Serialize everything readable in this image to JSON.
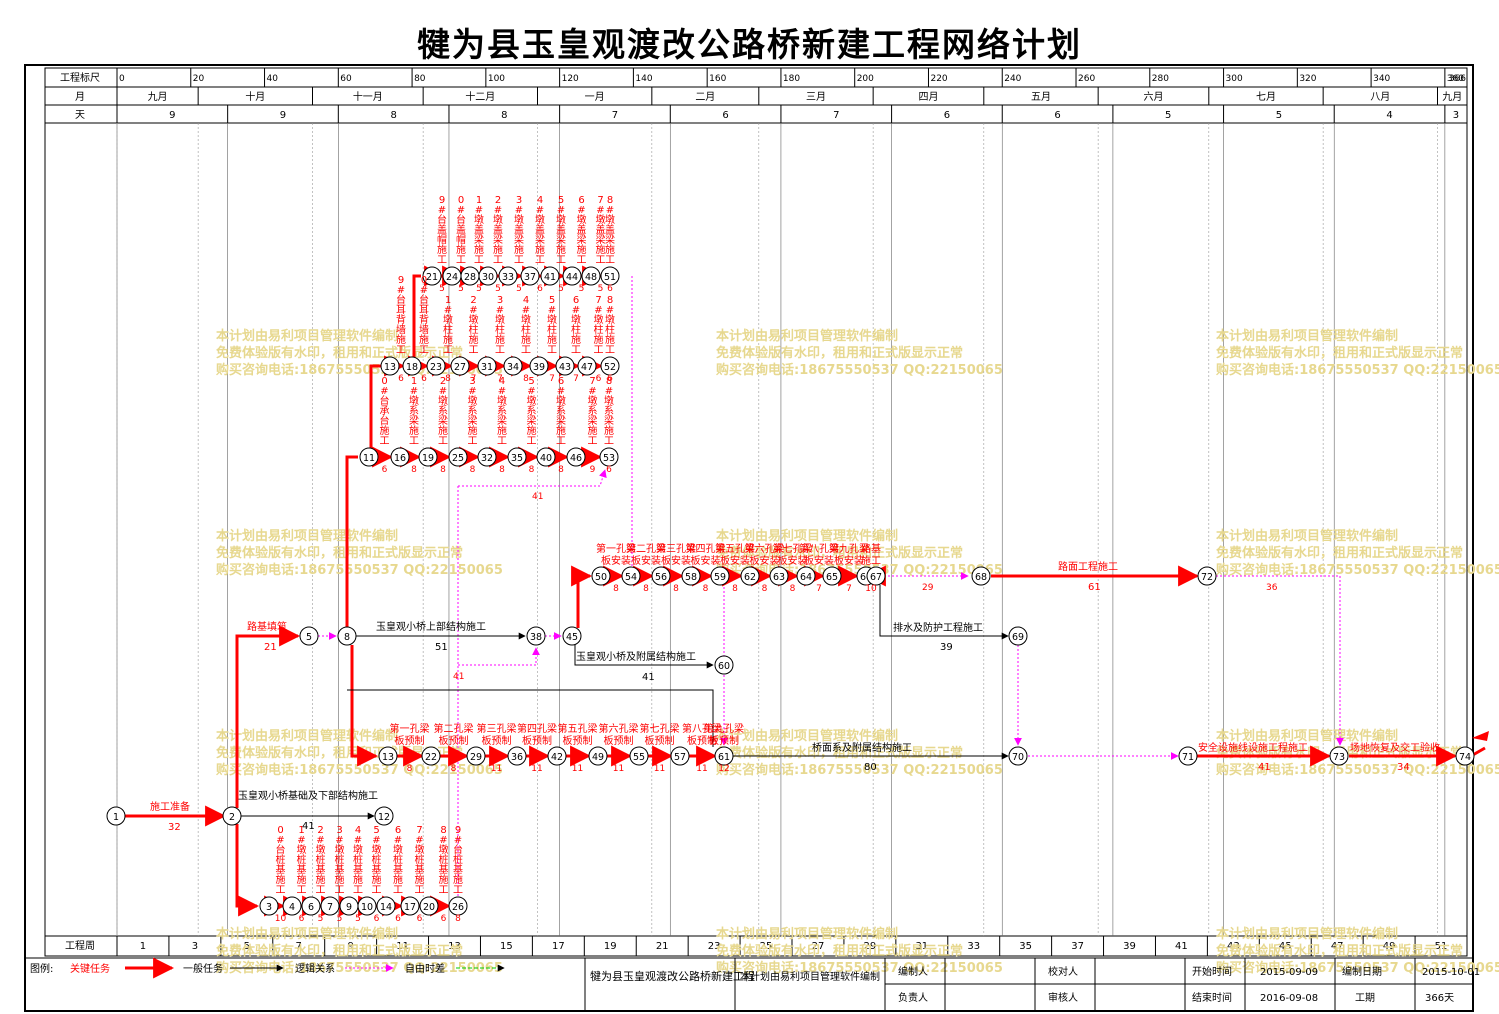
{
  "title": "犍为县玉皇观渡改公路桥新建工程网络计划",
  "scale": {
    "row_label": "工程标尺",
    "ticks": [
      "0",
      "20",
      "40",
      "60",
      "80",
      "100",
      "120",
      "140",
      "160",
      "180",
      "200",
      "220",
      "240",
      "260",
      "280",
      "300",
      "320",
      "340",
      "360",
      "366"
    ],
    "tick_values": [
      0,
      20,
      40,
      60,
      80,
      100,
      120,
      140,
      160,
      180,
      200,
      220,
      240,
      260,
      280,
      300,
      320,
      340,
      360,
      366
    ],
    "min": 0,
    "max": 366
  },
  "months": {
    "row_label": "月",
    "items": [
      {
        "label": "九月",
        "start": 0,
        "end": 22
      },
      {
        "label": "十月",
        "start": 22,
        "end": 53
      },
      {
        "label": "十一月",
        "start": 53,
        "end": 83
      },
      {
        "label": "十二月",
        "start": 83,
        "end": 114
      },
      {
        "label": "一月",
        "start": 114,
        "end": 145
      },
      {
        "label": "二月",
        "start": 145,
        "end": 174
      },
      {
        "label": "三月",
        "start": 174,
        "end": 205
      },
      {
        "label": "四月",
        "start": 205,
        "end": 235
      },
      {
        "label": "五月",
        "start": 235,
        "end": 266
      },
      {
        "label": "六月",
        "start": 266,
        "end": 296
      },
      {
        "label": "七月",
        "start": 296,
        "end": 327
      },
      {
        "label": "八月",
        "start": 327,
        "end": 358
      },
      {
        "label": "九月",
        "start": 358,
        "end": 366
      }
    ]
  },
  "days": {
    "row_label": "天",
    "items": [
      {
        "label": "9",
        "start": 0,
        "end": 30
      },
      {
        "label": "9",
        "start": 30,
        "end": 60
      },
      {
        "label": "8",
        "start": 60,
        "end": 90
      },
      {
        "label": "8",
        "start": 90,
        "end": 120
      },
      {
        "label": "7",
        "start": 120,
        "end": 150
      },
      {
        "label": "6",
        "start": 150,
        "end": 180
      },
      {
        "label": "7",
        "start": 180,
        "end": 210
      },
      {
        "label": "6",
        "start": 210,
        "end": 240
      },
      {
        "label": "6",
        "start": 240,
        "end": 270
      },
      {
        "label": "5",
        "start": 270,
        "end": 300
      },
      {
        "label": "5",
        "start": 300,
        "end": 330
      },
      {
        "label": "4",
        "start": 330,
        "end": 360
      },
      {
        "label": "3",
        "start": 360,
        "end": 366
      }
    ]
  },
  "weeks": {
    "row_label": "工程周",
    "labels": [
      "1",
      "3",
      "5",
      "7",
      "9",
      "11",
      "13",
      "15",
      "17",
      "19",
      "21",
      "23",
      "25",
      "27",
      "29",
      "31",
      "33",
      "35",
      "37",
      "39",
      "41",
      "43",
      "45",
      "47",
      "49",
      "51"
    ]
  },
  "watermark": [
    "本计划由易利项目管理软件编制",
    "免费体验版有水印，租用和正式版显示正常",
    "购买咨询电话:18675550537 QQ:22150065"
  ],
  "tasks": [
    {
      "name": "施工准备",
      "dur": "32"
    },
    {
      "name": "路基填筑",
      "dur": "21"
    },
    {
      "name": "玉皇观小桥上部结构施工",
      "dur": "51"
    },
    {
      "name": "玉皇观小桥及附属结构施工",
      "dur": "41"
    },
    {
      "name": "玉皇观小桥基础及下部结构施工",
      "dur": "41"
    },
    {
      "name": "路面工程施工",
      "dur": "61"
    },
    {
      "name": "排水及防护工程施工",
      "dur": "39"
    },
    {
      "name": "桥面系及附属结构施工",
      "dur": "80"
    },
    {
      "name": "安全设施线设施工程施工",
      "dur": "41"
    },
    {
      "name": "场地恢复及交工验收",
      "dur": "34"
    }
  ],
  "link_labels": [
    "41",
    "41",
    "29",
    "36",
    "41"
  ],
  "rows": {
    "cap": {
      "labels": [
        "9#台盖帽施工",
        "0#台盖帽施工",
        "1#墩盖梁施工",
        "2#墩盖梁施工",
        "3#墩盖梁施工",
        "4#墩盖梁施工",
        "5#墩盖梁施工",
        "6#墩盖梁施工",
        "7#墩盖梁施工",
        "8#墩盖梁施工"
      ],
      "nodes": [
        "21",
        "24",
        "28",
        "30",
        "33",
        "37",
        "41",
        "44",
        "48",
        "51"
      ],
      "durs": [
        "5",
        "5",
        "5",
        "5",
        "5",
        "6",
        "5",
        "5",
        "5",
        "6"
      ]
    },
    "column": {
      "labels": [
        "9#台耳背墙施工",
        "0#台耳背墙施工",
        "1#墩柱施工",
        "2#墩柱施工",
        "3#墩柱施工",
        "4#墩柱施工",
        "5#墩柱施工",
        "6#墩柱施工",
        "7#墩柱施工",
        "8#墩柱施工"
      ],
      "nodes": [
        "13",
        "18",
        "23",
        "27",
        "31",
        "34",
        "39",
        "43",
        "47",
        "52"
      ],
      "durs": [
        "6",
        "6",
        "8",
        "7",
        "7",
        "8",
        "7",
        "7",
        "6",
        "6"
      ]
    },
    "tie": {
      "labels": [
        "0#台承台施工",
        "1#墩系梁施工",
        "2#墩系梁施工",
        "3#墩系梁施工",
        "4#墩系梁施工",
        "5#墩系梁施工",
        "6#墩系梁施工",
        "7#墩系梁施工",
        "8#墩系梁施工"
      ],
      "nodes": [
        "11",
        "16",
        "19",
        "25",
        "32",
        "35",
        "40",
        "46",
        "53"
      ],
      "durs": [
        "6",
        "8",
        "8",
        "8",
        "8",
        "8",
        "8",
        "9",
        "6"
      ]
    },
    "girder": {
      "labels": [
        "第一孔梁板安装",
        "第二孔梁板安装",
        "第三孔梁板安装",
        "第四孔梁板安装",
        "第五孔梁板安装",
        "第六孔梁板安装",
        "第七孔梁板安装",
        "第八孔梁板安装",
        "第九孔梁板安装",
        "路基施工"
      ],
      "nodes": [
        "50",
        "54",
        "56",
        "58",
        "59",
        "62",
        "63",
        "64",
        "65",
        "66",
        "67"
      ],
      "durs": [
        "8",
        "8",
        "8",
        "8",
        "8",
        "8",
        "8",
        "7",
        "7",
        "10"
      ]
    },
    "prefab": {
      "labels": [
        "第一孔梁板预制",
        "第二孔梁板预制",
        "第三孔梁板预制",
        "第四孔梁板预制",
        "第五孔梁板预制",
        "第六孔梁板预制",
        "第七孔梁板预制",
        "第八孔梁板预制",
        "第九孔梁板预制"
      ],
      "nodes": [
        "13",
        "22",
        "29",
        "36",
        "42",
        "49",
        "55",
        "57",
        "61"
      ],
      "durs": [
        "8",
        "8",
        "11",
        "11",
        "11",
        "11",
        "11",
        "11",
        "12"
      ]
    },
    "pile": {
      "labels": [
        "0#台桩基施工",
        "1#墩桩基施工",
        "2#墩桩基施工",
        "3#墩桩基施工",
        "4#墩桩基施工",
        "5#墩桩基施工",
        "6#墩桩基施工",
        "7#墩桩基施工",
        "8#墩桩基施工",
        "9#台桩基施工"
      ],
      "nodes": [
        "3",
        "4",
        "6",
        "7",
        "9",
        "10",
        "14",
        "17",
        "20",
        "26"
      ],
      "durs": [
        "10",
        "6",
        "5",
        "5",
        "5",
        "6",
        "6",
        "6",
        "6",
        "8"
      ]
    }
  },
  "main_nodes": [
    "1",
    "2",
    "5",
    "8",
    "38",
    "45",
    "60",
    "12",
    "68",
    "72",
    "69",
    "70",
    "71",
    "73",
    "74"
  ],
  "legend": {
    "label": "图例:",
    "critical": "关键任务",
    "normal": "一般任务",
    "logic": "逻辑关系",
    "float": "自由时差",
    "colors": {
      "critical": "#ff0000",
      "normal": "#000000",
      "logic": "#ff00ff",
      "float": "#00cc00"
    }
  },
  "footer": {
    "project": "犍为县玉皇观渡改公路桥新建工程",
    "software": "本计划由易利项目管理软件编制",
    "compiler_label": "编制人",
    "checker_label": "校对人",
    "owner_label": "负责人",
    "reviewer_label": "审核人",
    "start_label": "开始时间",
    "start": "2015-09-09",
    "compile_label": "编制日期",
    "compile_date": "2015-10-01",
    "end_label": "结束时间",
    "end": "2016-09-08",
    "period_label": "工期",
    "period": "366天"
  }
}
